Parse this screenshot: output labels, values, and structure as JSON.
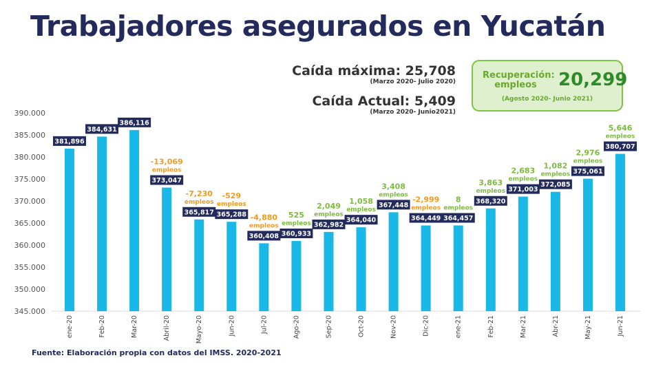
{
  "title": "Trabajadores asegurados en Yucatán",
  "max_drop": {
    "text": "Caída máxima: 25,708",
    "period": "(Marzo 2020- Julio 2020)"
  },
  "current_drop": {
    "text": "Caída Actual: 5,409",
    "period": "(Marzo 2020- Junio2021)"
  },
  "recovery": {
    "label": "Recuperación: empleos",
    "value": "20,299",
    "period": "(Agosto 2020- Junio 2021)"
  },
  "source": "Fuente: Elaboración propia con datos del IMSS. 2020-2021",
  "colors": {
    "bar": "#19b8e6",
    "value_box": "#232a5c",
    "negative": "#f39a1e",
    "positive": "#7dbb3f",
    "title": "#232a5c"
  },
  "chart_data": {
    "type": "bar",
    "categories": [
      "ene-20",
      "Feb-20",
      "Mar-20",
      "Abril-20",
      "Mayo-20",
      "Jun-20",
      "Jul-20",
      "Ago-20",
      "Sep-20",
      "Oct-20",
      "Nov-20",
      "Dic-20",
      "ene-21",
      "Feb-21",
      "Mar-21",
      "Abr-21",
      "May-21",
      "Jun-21"
    ],
    "values": [
      381896,
      384631,
      386116,
      373047,
      365817,
      365288,
      360408,
      360933,
      362982,
      364040,
      367448,
      364449,
      364457,
      368320,
      371003,
      372085,
      375061,
      380707
    ],
    "value_labels": [
      "381,896",
      "384,631",
      "386,116",
      "373,047",
      "365,817",
      "365,288",
      "360,408",
      "360,933",
      "362,982",
      "364,040",
      "367,448",
      "364,449",
      "364,457",
      "368,320",
      "371,003",
      "372,085",
      "375,061",
      "380,707"
    ],
    "changes": [
      "",
      "",
      "",
      "-13,069",
      "-7,230",
      "-529",
      "-4,880",
      "525",
      "2,049",
      "1,058",
      "3,408",
      "-2,999",
      "8",
      "3,863",
      "2,683",
      "1,082",
      "2,976",
      "5,646"
    ],
    "change_unit": "empleos",
    "yticks": [
      "345.000",
      "350.000",
      "355.000",
      "360.000",
      "365.000",
      "370.000",
      "375.000",
      "380.000",
      "385.000",
      "390.000"
    ],
    "ylim": [
      345000,
      390000
    ],
    "grid": false
  }
}
